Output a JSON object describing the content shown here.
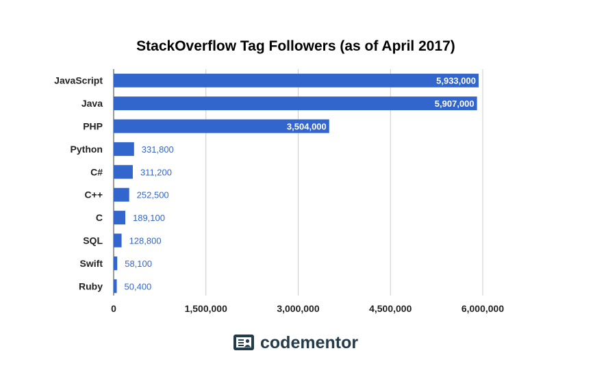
{
  "chart_data": {
    "type": "bar",
    "orientation": "horizontal",
    "title": "StackOverflow Tag Followers (as of April 2017)",
    "categories": [
      "JavaScript",
      "Java",
      "PHP",
      "Python",
      "C#",
      "C++",
      "C",
      "SQL",
      "Swift",
      "Ruby"
    ],
    "values": [
      5933000,
      5907000,
      3504000,
      331800,
      311200,
      252500,
      189100,
      128800,
      58100,
      50400
    ],
    "value_labels": [
      "5,933,000",
      "5,907,000",
      "3,504,000",
      "331,800",
      "311,200",
      "252,500",
      "189,100",
      "128,800",
      "58,100",
      "50,400"
    ],
    "xlim": [
      0,
      6000000
    ],
    "xticks": [
      0,
      1500000,
      3000000,
      4500000,
      6000000
    ],
    "xtick_labels": [
      "0",
      "1,500,000",
      "3,000,000",
      "4,500,000",
      "6,000,000"
    ],
    "xlabel": "",
    "ylabel": "",
    "grid": true,
    "bar_color": "#3366cc",
    "grid_color": "#cccccc"
  },
  "brand": {
    "name": "codementor",
    "icon": "codementor-logo-icon",
    "color": "#243b4a"
  }
}
